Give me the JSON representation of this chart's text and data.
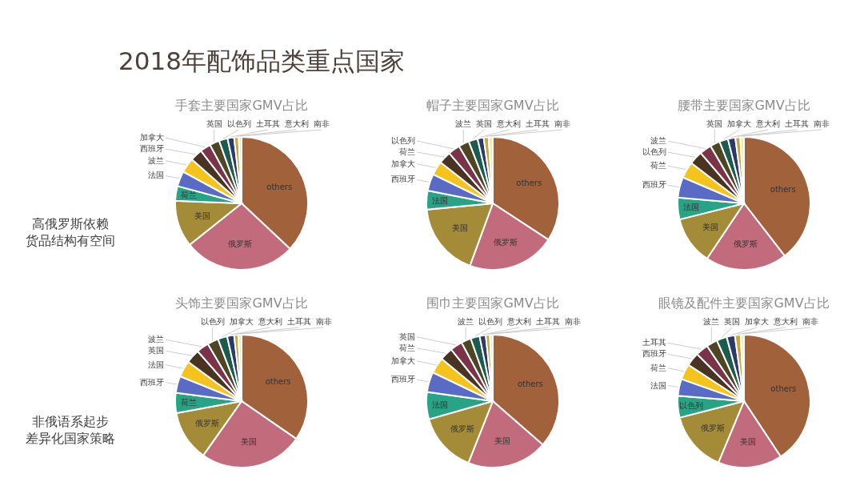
{
  "chart_data": [
    {
      "type": "other",
      "title": "2018年配饰品类重点国家",
      "annotations": [
        "高俄罗斯依赖",
        "货品结构有空间",
        "非俄语系起步",
        "差异化国家策略"
      ]
    },
    {
      "type": "pie",
      "title": "手套主要国家GMV占比",
      "categories": [
        "others",
        "俄罗斯",
        "美国",
        "荷兰",
        "法国",
        "波兰",
        "西班牙",
        "加拿大",
        "英国",
        "以色列",
        "土耳其",
        "意大利",
        "南非"
      ],
      "values": [
        37.0,
        27.3,
        11.3,
        3.6,
        3.7,
        3.6,
        3.0,
        2.6,
        2.4,
        2.1,
        1.6,
        1.1,
        0.7
      ],
      "colors": [
        "#a0613b",
        "#c26b7c",
        "#a38b38",
        "#27a385",
        "#5a6bc6",
        "#f4c41c",
        "#4b3324",
        "#7a3347",
        "#4e4524",
        "#1c5b4d",
        "#2b3a66",
        "#c8a640",
        "#f3e7b3"
      ]
    },
    {
      "type": "pie",
      "title": "帽子主要国家GMV占比",
      "categories": [
        "others",
        "俄罗斯",
        "美国",
        "法国",
        "西班牙",
        "加拿大",
        "荷兰",
        "以色列",
        "波兰",
        "英国",
        "意大利",
        "土耳其",
        "南非"
      ],
      "values": [
        34.2,
        21.4,
        17.9,
        4.6,
        4.1,
        3.4,
        3.0,
        2.9,
        2.6,
        2.2,
        1.5,
        1.2,
        1.0
      ],
      "colors": [
        "#a0613b",
        "#c26b7c",
        "#a38b38",
        "#27a385",
        "#5a6bc6",
        "#f4c41c",
        "#4b3324",
        "#7a3347",
        "#4e4524",
        "#1c5b4d",
        "#2b3a66",
        "#c8a640",
        "#f3e7b3"
      ]
    },
    {
      "type": "pie",
      "title": "腰带主要国家GMV占比",
      "categories": [
        "others",
        "俄罗斯",
        "美国",
        "法国",
        "西班牙",
        "荷兰",
        "以色列",
        "波兰",
        "英国",
        "加拿大",
        "意大利",
        "土耳其",
        "南非"
      ],
      "values": [
        39.5,
        19.9,
        11.7,
        5.3,
        5.0,
        4.0,
        3.3,
        2.9,
        2.4,
        2.1,
        1.8,
        1.2,
        0.9
      ],
      "colors": [
        "#a0613b",
        "#c26b7c",
        "#a38b38",
        "#27a385",
        "#5a6bc6",
        "#f4c41c",
        "#4b3324",
        "#7a3347",
        "#4e4524",
        "#1c5b4d",
        "#2b3a66",
        "#c8a640",
        "#f3e7b3"
      ]
    },
    {
      "type": "pie",
      "title": "头饰主要国家GMV占比",
      "categories": [
        "others",
        "美国",
        "俄罗斯",
        "荷兰",
        "西班牙",
        "法国",
        "英国",
        "波兰",
        "以色列",
        "加拿大",
        "意大利",
        "土耳其",
        "南非"
      ],
      "values": [
        34.6,
        25.2,
        12.3,
        4.9,
        4.1,
        4.0,
        3.4,
        3.0,
        2.7,
        2.3,
        1.7,
        1.0,
        0.8
      ],
      "colors": [
        "#a0613b",
        "#c26b7c",
        "#a38b38",
        "#27a385",
        "#5a6bc6",
        "#f4c41c",
        "#4b3324",
        "#7a3347",
        "#4e4524",
        "#1c5b4d",
        "#2b3a66",
        "#c8a640",
        "#f3e7b3"
      ]
    },
    {
      "type": "pie",
      "title": "围巾主要国家GMV占比",
      "categories": [
        "others",
        "美国",
        "俄罗斯",
        "法国",
        "西班牙",
        "加拿大",
        "荷兰",
        "英国",
        "波兰",
        "以色列",
        "意大利",
        "土耳其",
        "南非"
      ],
      "values": [
        36.4,
        19.6,
        14.6,
        6.6,
        4.9,
        3.9,
        3.2,
        3.0,
        2.4,
        2.2,
        1.5,
        1.0,
        0.7
      ],
      "colors": [
        "#a0613b",
        "#c26b7c",
        "#a38b38",
        "#27a385",
        "#5a6bc6",
        "#f4c41c",
        "#4b3324",
        "#7a3347",
        "#4e4524",
        "#1c5b4d",
        "#2b3a66",
        "#c8a640",
        "#f3e7b3"
      ]
    },
    {
      "type": "pie",
      "title": "眼镜及配件主要国家GMV占比",
      "categories": [
        "others",
        "美国",
        "俄罗斯",
        "以色列",
        "法国",
        "荷兰",
        "西班牙",
        "土耳其",
        "波兰",
        "英国",
        "加拿大",
        "意大利",
        "南非"
      ],
      "values": [
        40.7,
        15.6,
        14.7,
        5.3,
        4.1,
        3.8,
        3.3,
        3.1,
        2.7,
        2.5,
        2.0,
        1.4,
        0.8
      ],
      "colors": [
        "#a0613b",
        "#c26b7c",
        "#a38b38",
        "#27a385",
        "#5a6bc6",
        "#f4c41c",
        "#4b3324",
        "#7a3347",
        "#4e4524",
        "#1c5b4d",
        "#2b3a66",
        "#c8a640",
        "#f3e7b3"
      ]
    }
  ]
}
